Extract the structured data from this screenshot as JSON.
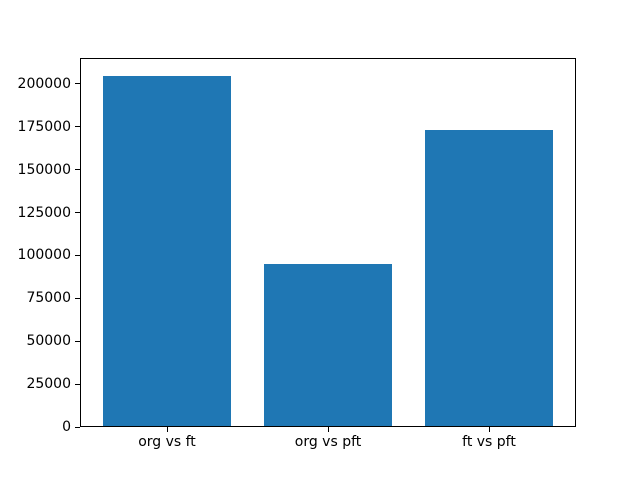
{
  "chart_data": {
    "type": "bar",
    "title": "",
    "xlabel": "",
    "ylabel": "",
    "categories": [
      "org vs ft",
      "org vs pft",
      "ft vs pft"
    ],
    "values": [
      204500,
      95000,
      173000
    ],
    "yticks": [
      0,
      25000,
      50000,
      75000,
      100000,
      125000,
      150000,
      175000,
      200000
    ],
    "ylim": [
      0,
      215000
    ],
    "xlim": [
      -0.54,
      2.54
    ],
    "bar_width": 0.8,
    "bar_color": "#1f77b4",
    "frame_color": "#000000",
    "background_color": "#ffffff",
    "grid": false,
    "legend": "none"
  }
}
